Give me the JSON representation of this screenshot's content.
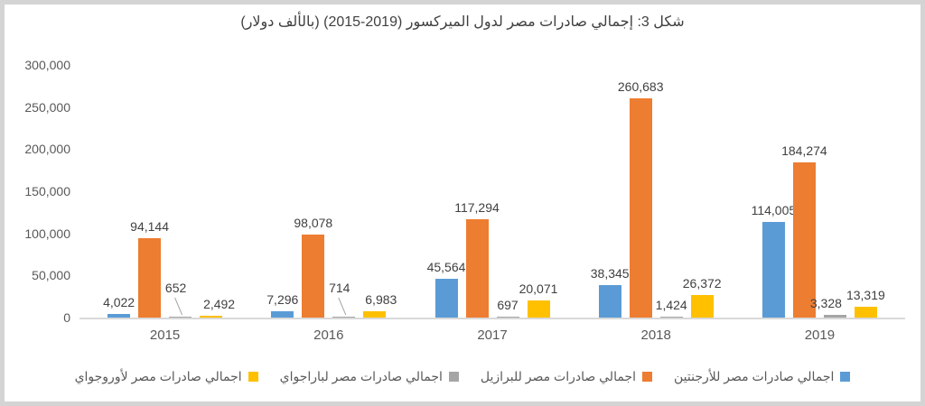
{
  "chart_data": {
    "type": "bar",
    "title": "شكل 3: إجمالي صادرات مصر لدول الميركسور (2019-2015) (بالألف دولار)",
    "categories": [
      "2015",
      "2016",
      "2017",
      "2018",
      "2019"
    ],
    "series": [
      {
        "key": "argentina",
        "name": "اجمالي صادرات مصر للأرجنتين",
        "color": "#5B9BD5",
        "values": [
          4022,
          7296,
          45564,
          38345,
          114005
        ]
      },
      {
        "key": "brazil",
        "name": "اجمالي صادرات مصر للبرازيل",
        "color": "#ED7D31",
        "values": [
          94144,
          98078,
          117294,
          260683,
          184274
        ]
      },
      {
        "key": "paraguay",
        "name": "اجمالي صادرات مصر لباراجواي",
        "color": "#A5A5A5",
        "values": [
          652,
          714,
          697,
          1424,
          3328
        ]
      },
      {
        "key": "uruguay",
        "name": "اجمالي صادرات مصر لأوروجواي",
        "color": "#FFC000",
        "values": [
          2492,
          6983,
          20071,
          26372,
          13319
        ]
      }
    ],
    "ylim": [
      0,
      300000
    ],
    "ytick_step": 50000,
    "ytick_labels": [
      "0",
      "50,000",
      "100,000",
      "150,000",
      "200,000",
      "250,000",
      "300,000"
    ],
    "grid": false,
    "legend_position": "bottom",
    "data_labels": true,
    "axis_color": "#d9d9d9",
    "label_color": "#404040",
    "tick_color": "#595959"
  }
}
